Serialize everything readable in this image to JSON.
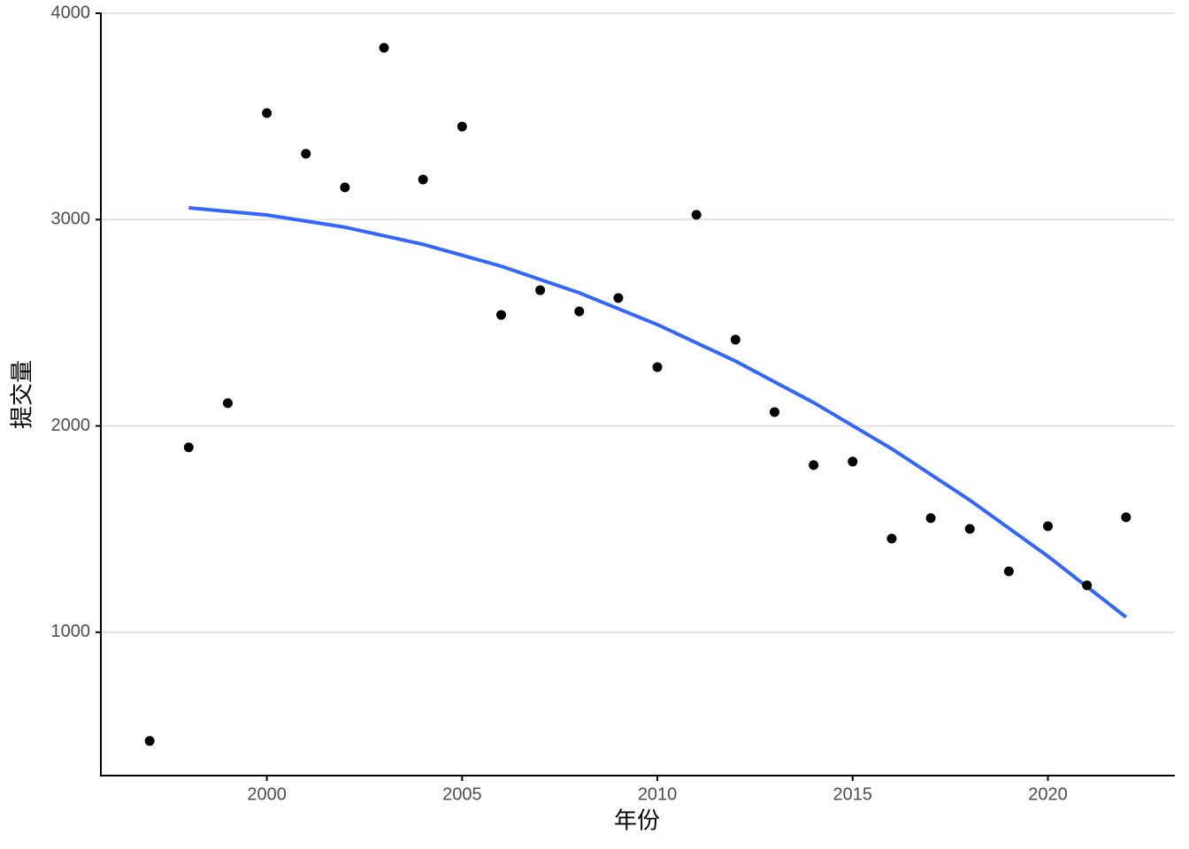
{
  "chart_data": {
    "type": "scatter",
    "x_label": "年份",
    "y_label": "提交量",
    "x": [
      1997,
      1998,
      1999,
      2000,
      2001,
      2002,
      2003,
      2004,
      2005,
      2006,
      2007,
      2008,
      2009,
      2010,
      2011,
      2012,
      2013,
      2014,
      2015,
      2016,
      2017,
      2018,
      2019,
      2020,
      2021,
      2022
    ],
    "values": [
      473,
      1896,
      2110,
      3516,
      3319,
      3156,
      3833,
      3194,
      3451,
      2538,
      2658,
      2555,
      2620,
      2285,
      3023,
      2418,
      2067,
      1810,
      1827,
      1454,
      1553,
      1501,
      1295,
      1514,
      1227,
      1557
    ],
    "color": "#000000",
    "fit": {
      "type": "line",
      "x": [
        1998,
        2000,
        2002,
        2004,
        2006,
        2008,
        2010,
        2012,
        2014,
        2016,
        2018,
        2020,
        2022
      ],
      "values": [
        3057,
        3022,
        2963,
        2880,
        2774,
        2645,
        2491,
        2314,
        2113,
        1889,
        1640,
        1368,
        1073
      ],
      "color": "#3366ff"
    },
    "xlim": [
      1995.75,
      2023.25
    ],
    "ylim": [
      305,
      4000
    ],
    "xticks": [
      2000,
      2005,
      2010,
      2015,
      2020
    ],
    "yticks": [
      1000,
      2000,
      3000,
      4000
    ],
    "grid": true
  }
}
